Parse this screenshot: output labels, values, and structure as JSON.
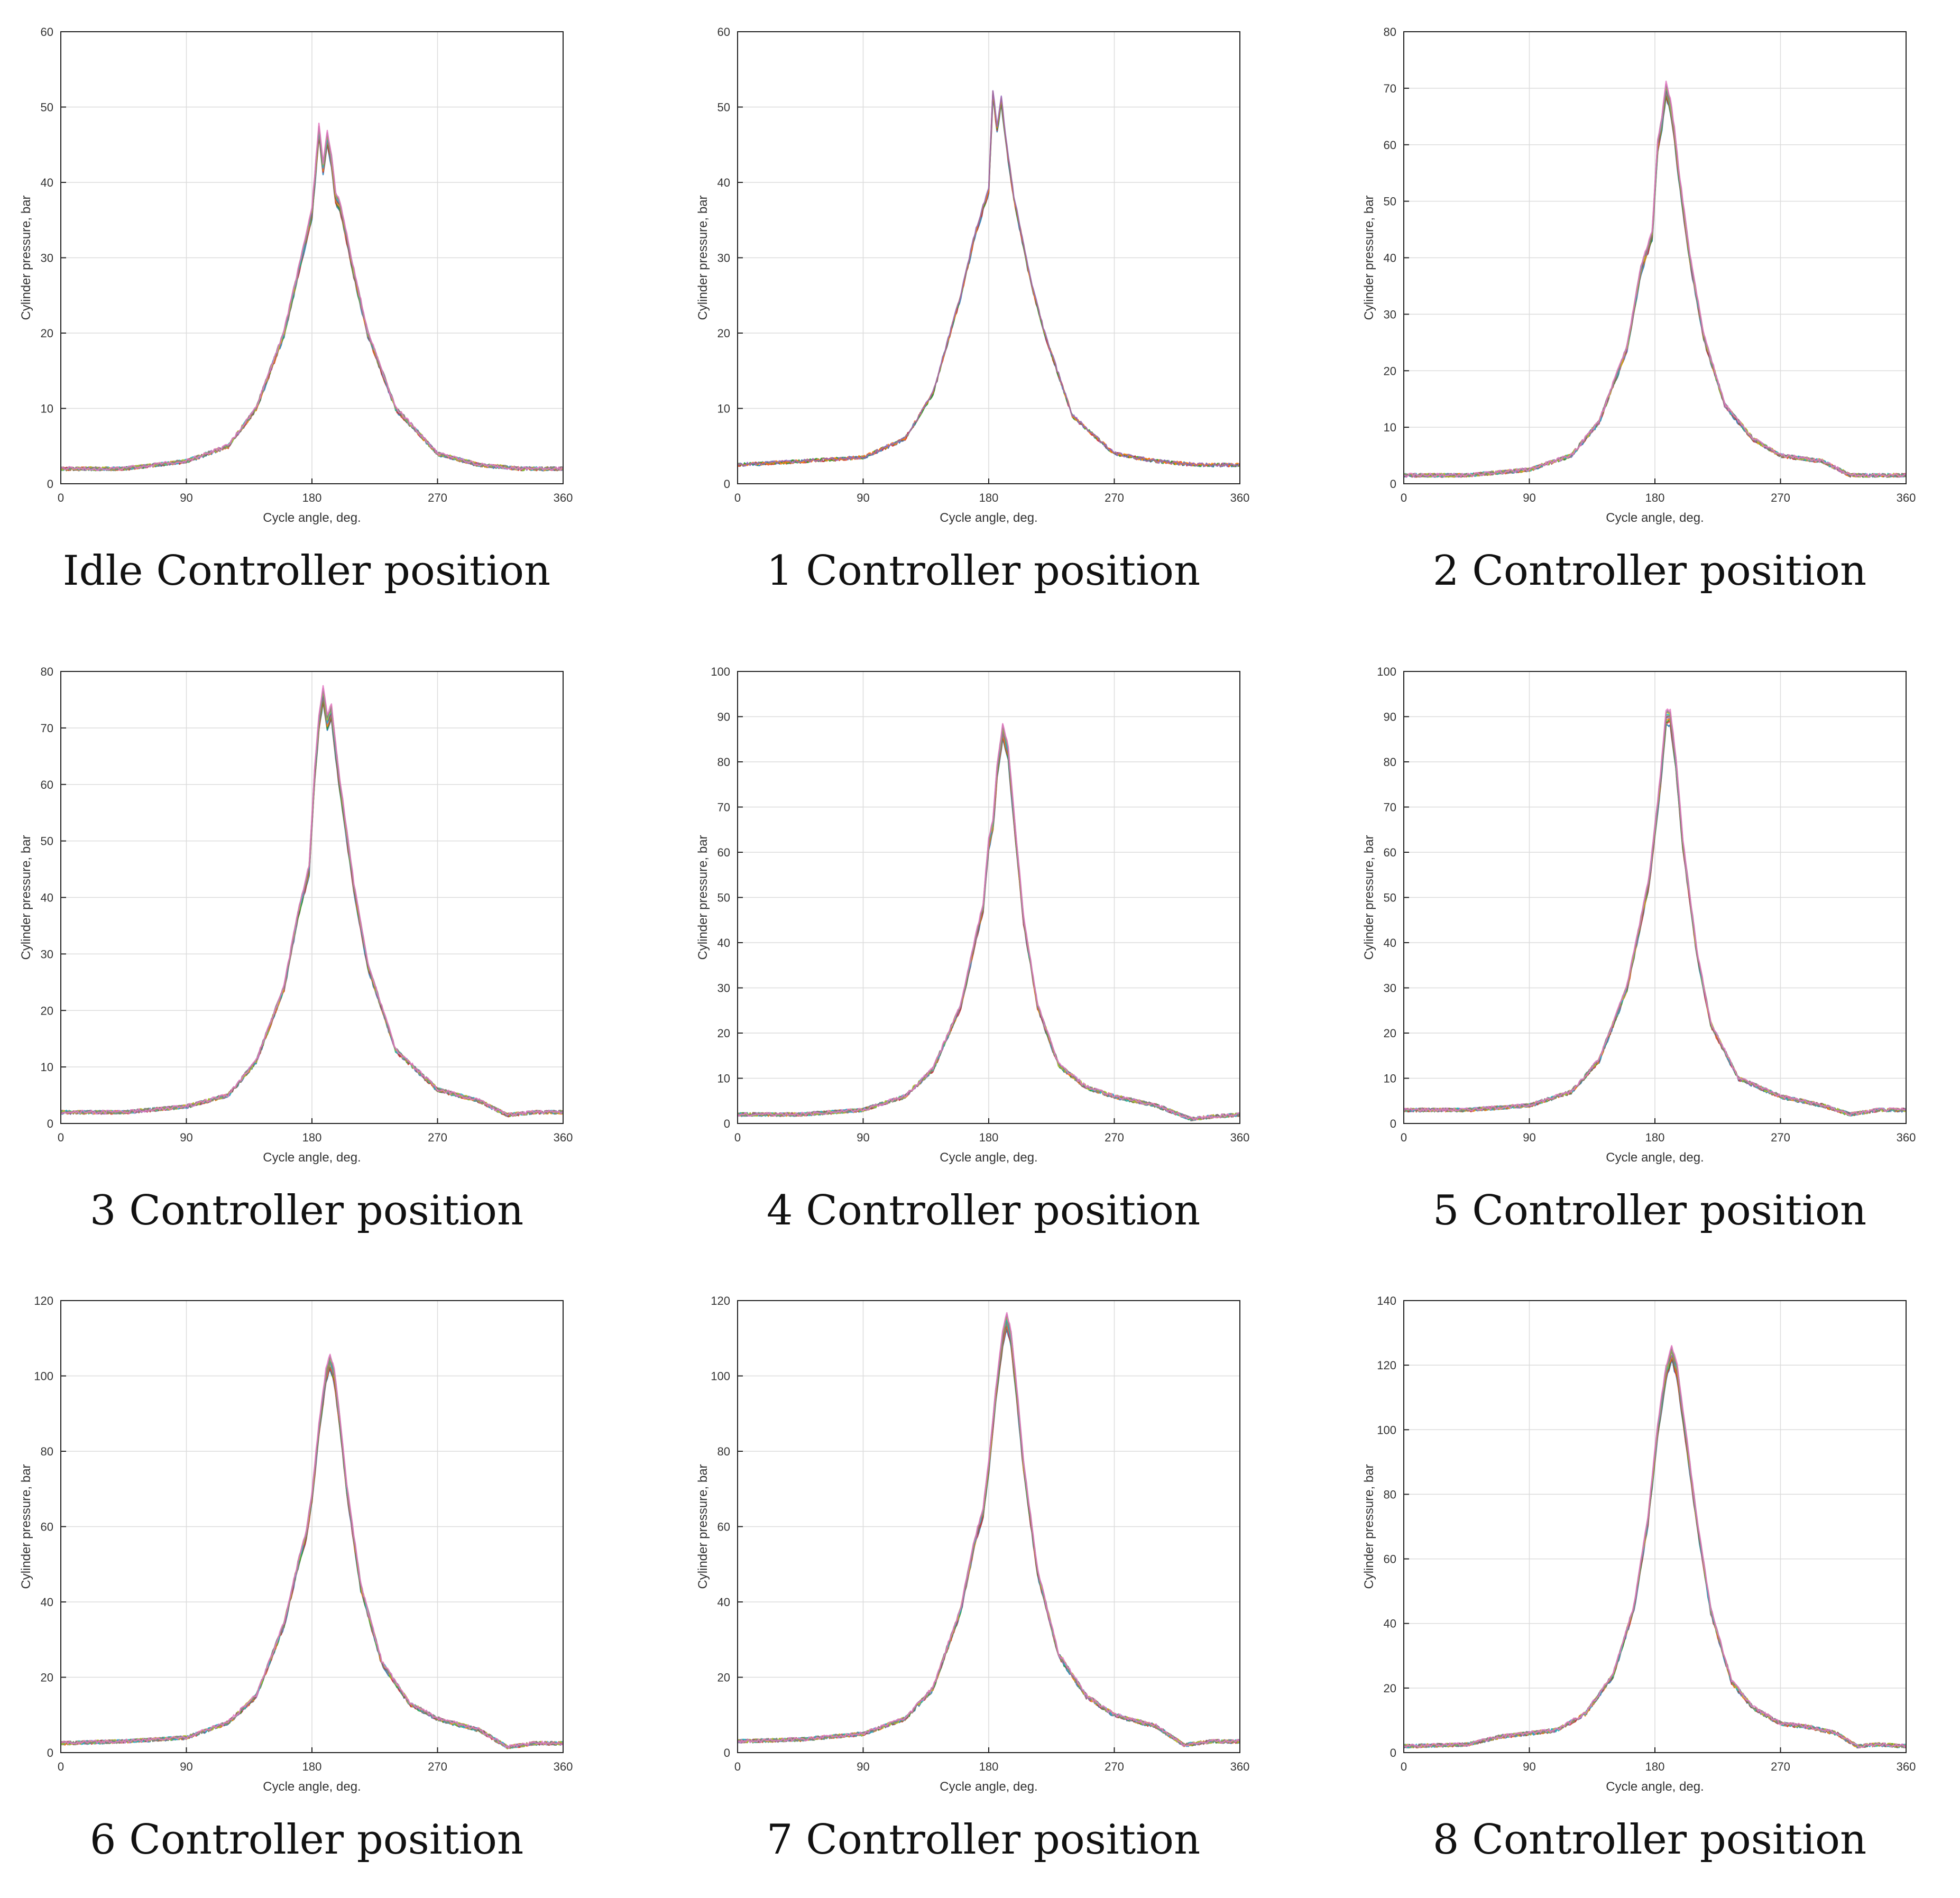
{
  "figure": {
    "palette": [
      "#1f77b4",
      "#d62728",
      "#2ca02c",
      "#ff7f0e",
      "#9467bd",
      "#8c564b",
      "#17becf",
      "#bcbd22",
      "#7f7f7f",
      "#e377c2"
    ]
  },
  "chart_data": [
    {
      "type": "line",
      "caption": "Idle Controller position",
      "xlabel": "Cycle angle, deg.",
      "ylabel": "Cylinder pressure, bar",
      "xlim": [
        0,
        360
      ],
      "ylim": [
        0,
        60
      ],
      "xticks": [
        0,
        90,
        180,
        270,
        360
      ],
      "yticks": [
        0,
        10,
        20,
        30,
        40,
        50,
        60
      ],
      "grid": true,
      "x": [
        0,
        45,
        90,
        120,
        140,
        160,
        170,
        180,
        185,
        188,
        191,
        194,
        197,
        200,
        210,
        220,
        240,
        270,
        300,
        330,
        360
      ],
      "y": [
        2,
        2,
        3,
        5,
        10,
        20,
        28,
        36,
        47,
        42,
        46,
        43,
        38,
        37,
        28,
        20,
        10,
        4,
        2.5,
        2,
        2
      ],
      "runs": 10
    },
    {
      "type": "line",
      "caption": "1 Controller position",
      "xlabel": "Cycle angle, deg.",
      "ylabel": "Cylinder pressure, bar",
      "xlim": [
        0,
        360
      ],
      "ylim": [
        0,
        60
      ],
      "xticks": [
        0,
        90,
        180,
        270,
        360
      ],
      "yticks": [
        0,
        10,
        20,
        30,
        40,
        50,
        60
      ],
      "grid": true,
      "x": [
        0,
        45,
        90,
        120,
        140,
        160,
        170,
        180,
        183,
        186,
        189,
        192,
        195,
        198,
        210,
        220,
        240,
        270,
        300,
        330,
        360
      ],
      "y": [
        2.5,
        3,
        3.5,
        6,
        12,
        25,
        33,
        39,
        52,
        47,
        51,
        46,
        42,
        38,
        27,
        20,
        9,
        4,
        3,
        2.5,
        2.5
      ],
      "runs": 5
    },
    {
      "type": "line",
      "caption": "2 Controller position",
      "xlabel": "Cycle angle, deg.",
      "ylabel": "Cylinder pressure, bar",
      "xlim": [
        0,
        360
      ],
      "ylim": [
        0,
        80
      ],
      "xticks": [
        0,
        90,
        180,
        270,
        360
      ],
      "yticks": [
        0,
        10,
        20,
        30,
        40,
        50,
        60,
        70,
        80
      ],
      "grid": true,
      "x": [
        0,
        45,
        90,
        120,
        140,
        160,
        170,
        178,
        182,
        185,
        188,
        191,
        194,
        197,
        205,
        215,
        230,
        250,
        270,
        300,
        320,
        340,
        360
      ],
      "y": [
        1.5,
        1.5,
        2.5,
        5,
        11,
        24,
        38,
        44,
        60,
        64,
        70,
        67,
        62,
        55,
        40,
        26,
        14,
        8,
        5,
        4,
        1.5,
        1.5,
        1.5
      ],
      "runs": 10
    },
    {
      "type": "line",
      "caption": "3 Controller position",
      "xlabel": "Cycle angle, deg.",
      "ylabel": "Cylinder pressure, bar",
      "xlim": [
        0,
        360
      ],
      "ylim": [
        0,
        80
      ],
      "xticks": [
        0,
        90,
        180,
        270,
        360
      ],
      "yticks": [
        0,
        10,
        20,
        30,
        40,
        50,
        60,
        70,
        80
      ],
      "grid": true,
      "x": [
        0,
        45,
        90,
        120,
        140,
        160,
        170,
        178,
        182,
        185,
        188,
        191,
        194,
        197,
        200,
        210,
        220,
        240,
        270,
        300,
        320,
        340,
        360
      ],
      "y": [
        2,
        2,
        3,
        5,
        11,
        24,
        37,
        45,
        62,
        71,
        76,
        71,
        73,
        66,
        60,
        42,
        28,
        13,
        6,
        4,
        1.5,
        2,
        2
      ],
      "runs": 10
    },
    {
      "type": "line",
      "caption": "4 Controller position",
      "xlabel": "Cycle angle, deg.",
      "ylabel": "Cylinder pressure, bar",
      "xlim": [
        0,
        360
      ],
      "ylim": [
        0,
        100
      ],
      "xticks": [
        0,
        90,
        180,
        270,
        360
      ],
      "yticks": [
        0,
        10,
        20,
        30,
        40,
        50,
        60,
        70,
        80,
        90,
        100
      ],
      "grid": true,
      "x": [
        0,
        45,
        90,
        120,
        140,
        160,
        170,
        176,
        180,
        183,
        186,
        190,
        194,
        198,
        205,
        215,
        230,
        250,
        270,
        300,
        325,
        340,
        360
      ],
      "y": [
        2,
        2,
        3,
        6,
        12,
        26,
        40,
        48,
        62,
        66,
        78,
        87,
        82,
        68,
        45,
        26,
        13,
        8,
        6,
        4,
        1,
        1.5,
        2
      ],
      "runs": 10
    },
    {
      "type": "line",
      "caption": "5 Controller position",
      "xlabel": "Cycle angle, deg.",
      "ylabel": "Cylinder pressure, bar",
      "xlim": [
        0,
        360
      ],
      "ylim": [
        0,
        100
      ],
      "xticks": [
        0,
        90,
        180,
        270,
        360
      ],
      "yticks": [
        0,
        10,
        20,
        30,
        40,
        50,
        60,
        70,
        80,
        90,
        100
      ],
      "grid": true,
      "x": [
        0,
        45,
        90,
        120,
        140,
        160,
        170,
        176,
        180,
        184,
        188,
        191,
        195,
        200,
        210,
        220,
        240,
        270,
        300,
        320,
        340,
        360
      ],
      "y": [
        3,
        3,
        4,
        7,
        14,
        30,
        45,
        54,
        65,
        76,
        90,
        90,
        80,
        62,
        38,
        22,
        10,
        6,
        4,
        2,
        3,
        3
      ],
      "runs": 10
    },
    {
      "type": "line",
      "caption": "6 Controller position",
      "xlabel": "Cycle angle, deg.",
      "ylabel": "Cylinder pressure, bar",
      "xlim": [
        0,
        360
      ],
      "ylim": [
        0,
        120
      ],
      "xticks": [
        0,
        90,
        180,
        270,
        360
      ],
      "yticks": [
        0,
        20,
        40,
        60,
        80,
        100,
        120
      ],
      "grid": true,
      "x": [
        0,
        45,
        90,
        120,
        140,
        160,
        170,
        176,
        180,
        185,
        190,
        193,
        196,
        200,
        205,
        215,
        230,
        250,
        270,
        300,
        320,
        340,
        360
      ],
      "y": [
        2.5,
        3,
        4,
        8,
        15,
        34,
        50,
        58,
        68,
        86,
        100,
        104,
        100,
        88,
        70,
        44,
        24,
        13,
        9,
        6,
        1.5,
        2.5,
        2.5
      ],
      "runs": 10
    },
    {
      "type": "line",
      "caption": "7 Controller position",
      "xlabel": "Cycle angle, deg.",
      "ylabel": "Cylinder pressure, bar",
      "xlim": [
        0,
        360
      ],
      "ylim": [
        0,
        120
      ],
      "xticks": [
        0,
        90,
        180,
        270,
        360
      ],
      "yticks": [
        0,
        20,
        40,
        60,
        80,
        100,
        120
      ],
      "grid": true,
      "x": [
        0,
        45,
        90,
        120,
        140,
        160,
        170,
        176,
        180,
        185,
        190,
        193,
        196,
        200,
        205,
        215,
        230,
        250,
        270,
        300,
        320,
        340,
        360
      ],
      "y": [
        3,
        3.5,
        5,
        9,
        17,
        38,
        56,
        64,
        76,
        95,
        110,
        115,
        110,
        96,
        76,
        48,
        26,
        15,
        10,
        7,
        2,
        3,
        3
      ],
      "runs": 10
    },
    {
      "type": "line",
      "caption": "8 Controller position",
      "xlabel": "Cycle angle, deg.",
      "ylabel": "Cylinder pressure, bar",
      "xlim": [
        0,
        360
      ],
      "ylim": [
        0,
        140
      ],
      "xticks": [
        0,
        90,
        180,
        270,
        360
      ],
      "yticks": [
        0,
        20,
        40,
        60,
        80,
        100,
        120,
        140
      ],
      "grid": true,
      "x": [
        0,
        45,
        70,
        90,
        110,
        130,
        150,
        165,
        175,
        182,
        188,
        192,
        196,
        200,
        210,
        220,
        235,
        250,
        270,
        290,
        310,
        325,
        340,
        360
      ],
      "y": [
        2,
        2.5,
        5,
        6,
        7,
        12,
        24,
        45,
        72,
        100,
        118,
        124,
        118,
        105,
        72,
        44,
        22,
        14,
        9,
        8,
        6,
        2,
        2.5,
        2
      ],
      "runs": 10
    }
  ]
}
